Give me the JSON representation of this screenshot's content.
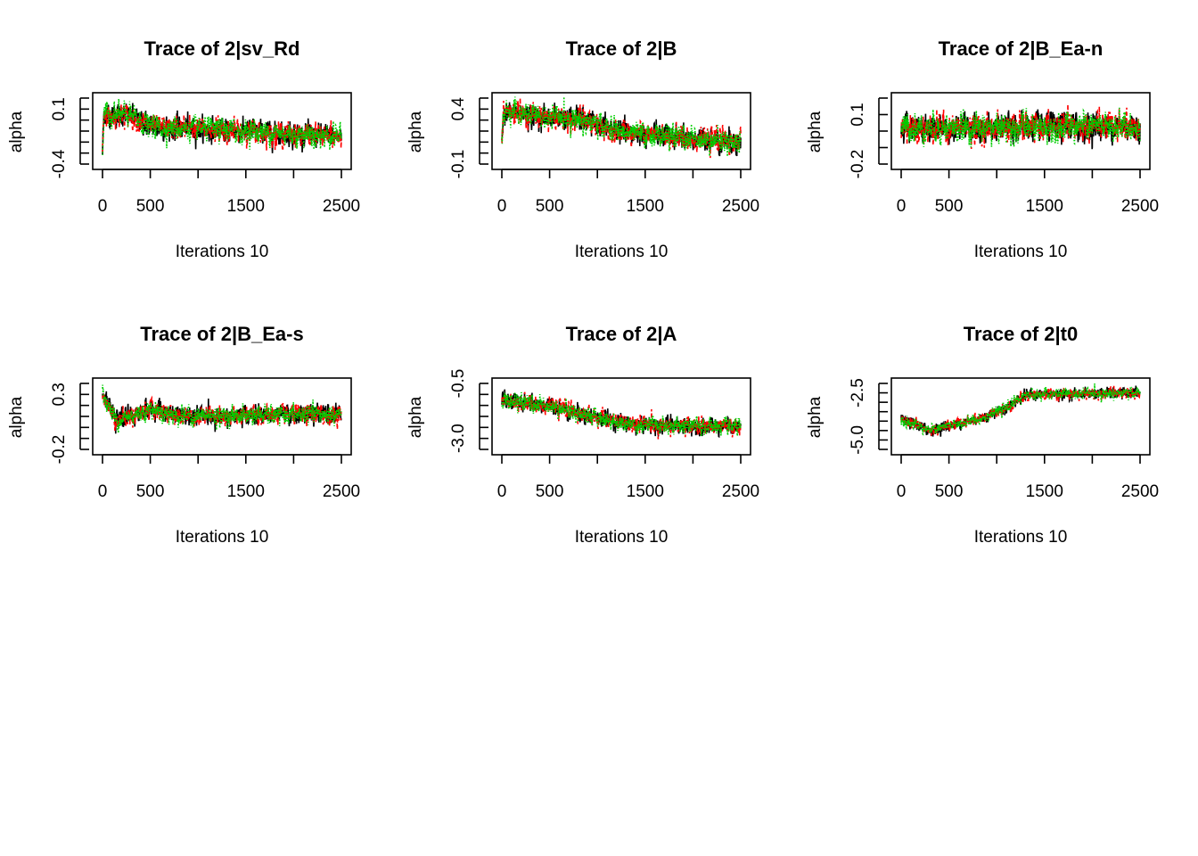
{
  "chart_data": [
    {
      "type": "line",
      "title": "Trace of 2|sv_Rd",
      "xlabel": "Iterations 10",
      "ylabel": "alpha",
      "xlim": [
        0,
        2500
      ],
      "x_ticks": [
        0,
        500,
        1000,
        1500,
        2000,
        2500
      ],
      "x_tick_labels": [
        "0",
        "500",
        "1500",
        "2500"
      ],
      "y_ticks": [
        0.2,
        0.1,
        0.0,
        -0.1,
        -0.2,
        -0.3,
        -0.4
      ],
      "y_tick_labels": [
        "0.1",
        "-0.4"
      ],
      "trend": [
        [
          0,
          -0.3
        ],
        [
          15,
          0.05
        ],
        [
          300,
          0.04
        ],
        [
          500,
          -0.06
        ],
        [
          1500,
          -0.1
        ],
        [
          2500,
          -0.15
        ]
      ],
      "spread": 0.11
    },
    {
      "type": "line",
      "title": "Trace of 2|B",
      "xlabel": "Iterations 10",
      "ylabel": "alpha",
      "xlim": [
        0,
        2500
      ],
      "x_ticks": [
        0,
        500,
        1000,
        1500,
        2000,
        2500
      ],
      "x_tick_labels": [
        "0",
        "500",
        "1500",
        "2500"
      ],
      "y_ticks": [
        0.5,
        0.4,
        0.3,
        0.2,
        0.1,
        0.0,
        -0.1
      ],
      "y_tick_labels": [
        "0.4",
        "-0.1"
      ],
      "trend": [
        [
          0,
          0.1
        ],
        [
          15,
          0.38
        ],
        [
          400,
          0.33
        ],
        [
          800,
          0.31
        ],
        [
          1300,
          0.18
        ],
        [
          2500,
          0.1
        ]
      ],
      "spread": 0.11
    },
    {
      "type": "line",
      "title": "Trace of 2|B_Ea-n",
      "xlabel": "Iterations 10",
      "ylabel": "alpha",
      "xlim": [
        0,
        2500
      ],
      "x_ticks": [
        0,
        500,
        1000,
        1500,
        2000,
        2500
      ],
      "x_tick_labels": [
        "0",
        "500",
        "1500",
        "2500"
      ],
      "y_ticks": [
        0.2,
        0.1,
        0.0,
        -0.1,
        -0.2
      ],
      "y_tick_labels": [
        "0.1",
        "-0.2"
      ],
      "trend": [
        [
          0,
          0.02
        ],
        [
          1000,
          0.02
        ],
        [
          2500,
          0.03
        ]
      ],
      "spread": 0.09
    },
    {
      "type": "line",
      "title": "Trace of 2|B_Ea-s",
      "xlabel": "Iterations 10",
      "ylabel": "alpha",
      "xlim": [
        0,
        2500
      ],
      "x_ticks": [
        0,
        500,
        1000,
        1500,
        2000,
        2500
      ],
      "x_tick_labels": [
        "0",
        "500",
        "1500",
        "2500"
      ],
      "y_ticks": [
        0.4,
        0.3,
        0.2,
        0.1,
        0.0,
        -0.1,
        -0.2
      ],
      "y_tick_labels": [
        "0.3",
        "-0.2"
      ],
      "trend": [
        [
          0,
          0.3
        ],
        [
          150,
          0.06
        ],
        [
          500,
          0.17
        ],
        [
          800,
          0.1
        ],
        [
          2500,
          0.12
        ]
      ],
      "spread": 0.09
    },
    {
      "type": "line",
      "title": "Trace of 2|A",
      "xlabel": "Iterations 10",
      "ylabel": "alpha",
      "xlim": [
        0,
        2500
      ],
      "x_ticks": [
        0,
        500,
        1000,
        1500,
        2000,
        2500
      ],
      "x_tick_labels": [
        "0",
        "500",
        "1500",
        "2500"
      ],
      "y_ticks": [
        -0.5,
        -1.0,
        -1.5,
        -2.0,
        -2.5,
        -3.0,
        -3.5
      ],
      "y_tick_labels": [
        "-0.5",
        "-3.0"
      ],
      "trend": [
        [
          0,
          -1.3
        ],
        [
          500,
          -1.5
        ],
        [
          800,
          -1.85
        ],
        [
          1300,
          -2.35
        ],
        [
          2500,
          -2.5
        ]
      ],
      "spread": 0.4
    },
    {
      "type": "line",
      "title": "Trace of 2|t0",
      "xlabel": "Iterations 10",
      "ylabel": "alpha",
      "xlim": [
        0,
        2500
      ],
      "x_ticks": [
        0,
        500,
        1000,
        1500,
        2000,
        2500
      ],
      "x_tick_labels": [
        "0",
        "500",
        "1500",
        "2500"
      ],
      "y_ticks": [
        -2.0,
        -2.5,
        -3.0,
        -3.5,
        -4.0,
        -4.5,
        -5.0,
        -5.5
      ],
      "y_tick_labels": [
        "-2.5",
        "-5.0"
      ],
      "trend": [
        [
          0,
          -3.9
        ],
        [
          300,
          -4.5
        ],
        [
          800,
          -3.9
        ],
        [
          1100,
          -3.3
        ],
        [
          1300,
          -2.6
        ],
        [
          2500,
          -2.5
        ]
      ],
      "spread": 0.3
    }
  ],
  "series": [
    {
      "color": "#000000",
      "style": "solid"
    },
    {
      "color": "#FF0000",
      "style": "dashed"
    },
    {
      "color": "#00CD00",
      "style": "dotted"
    }
  ]
}
